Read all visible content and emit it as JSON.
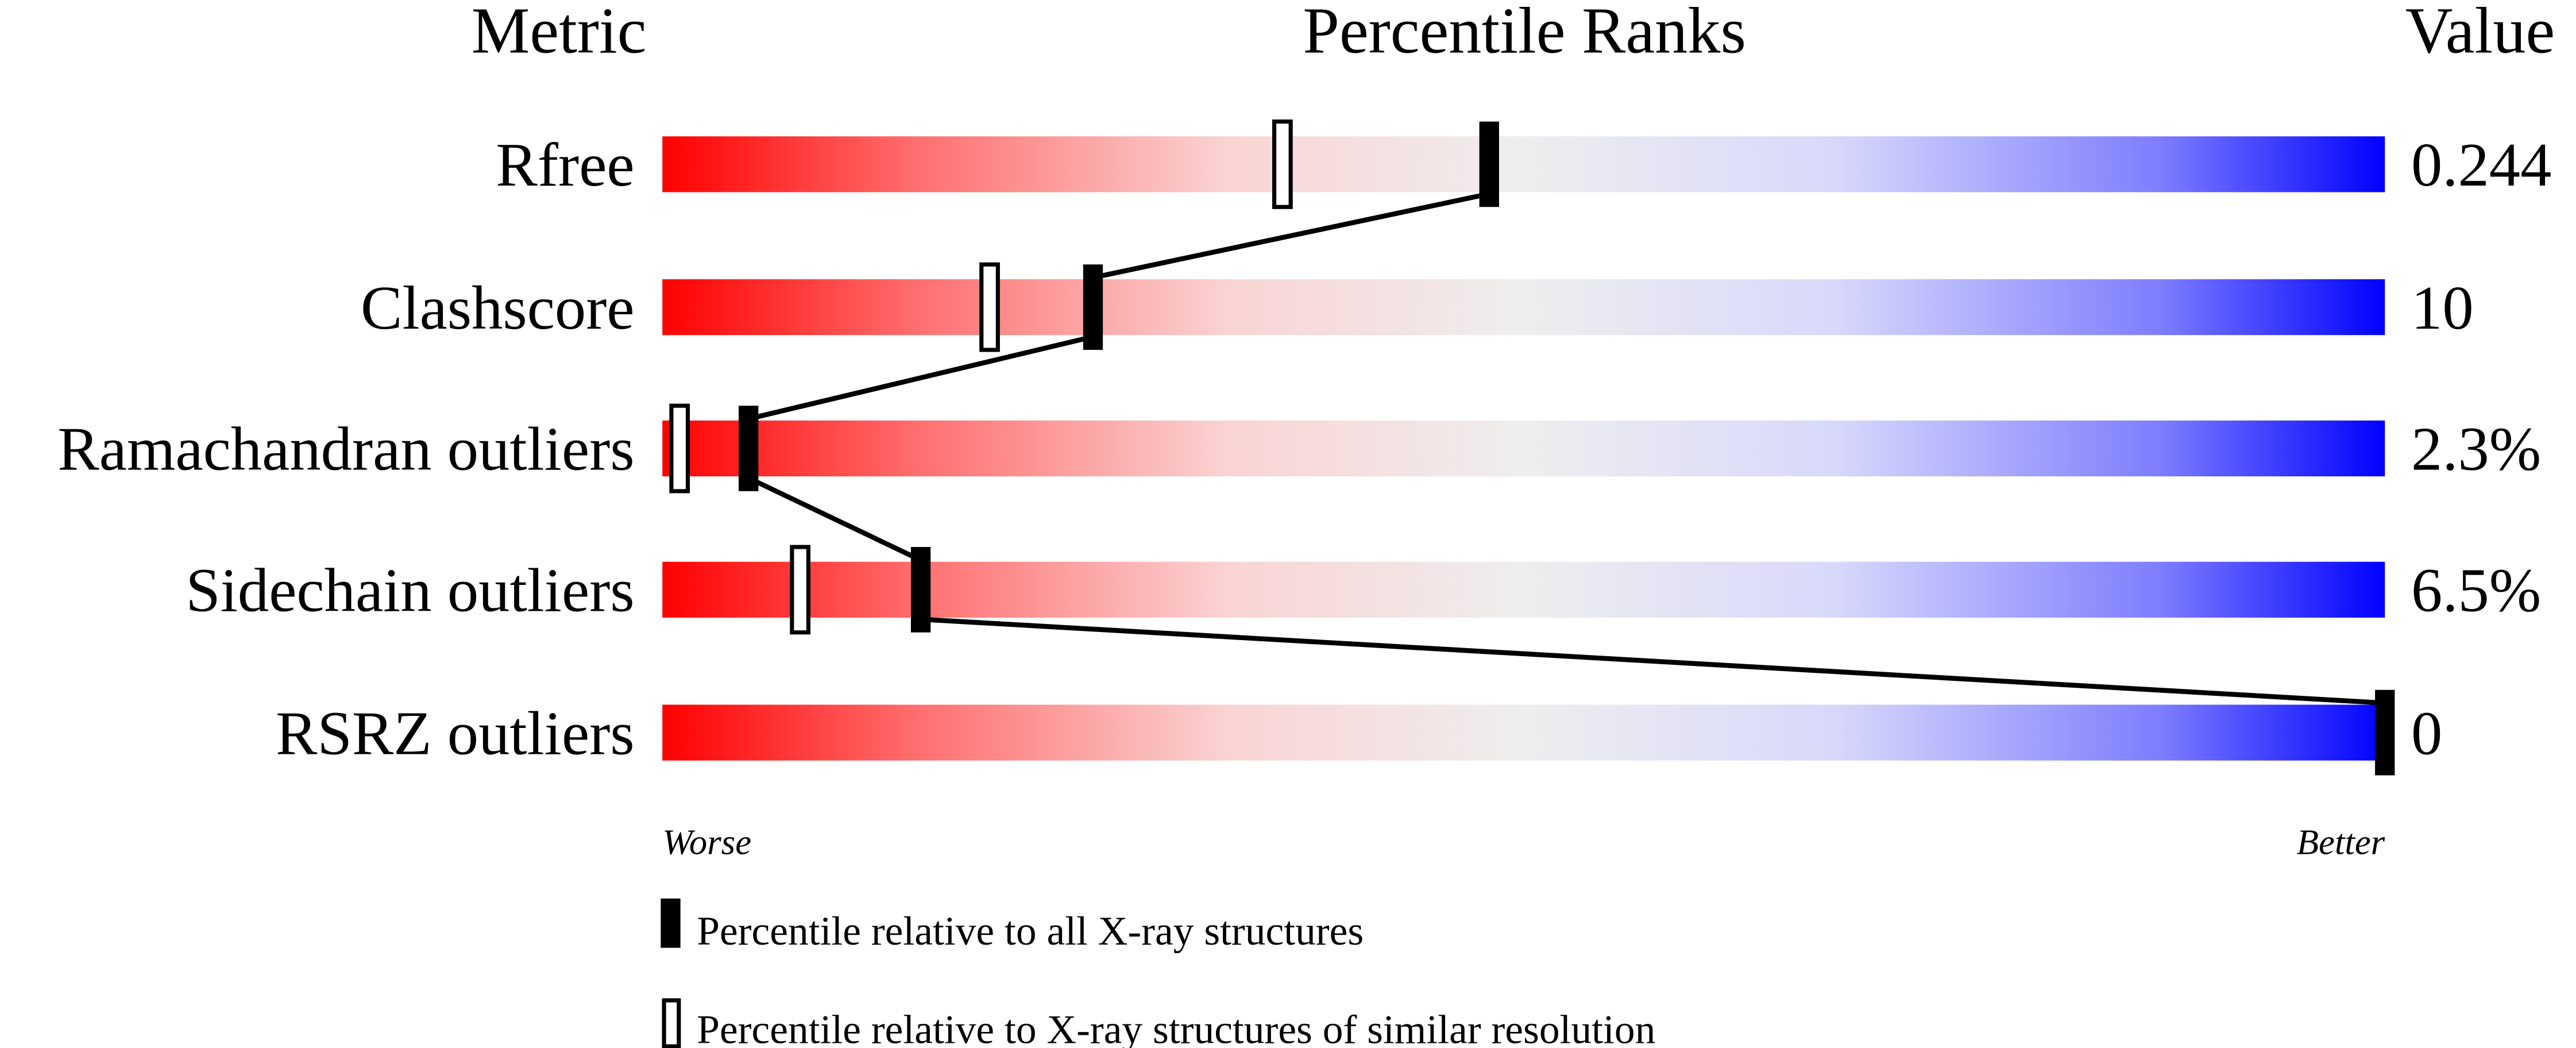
{
  "chart_data": {
    "type": "bar",
    "headers": {
      "metric": "Metric",
      "ranks": "Percentile Ranks",
      "value": "Value"
    },
    "metrics": [
      {
        "name": "Rfree",
        "value": "0.244",
        "percentile_all": 48,
        "percentile_similar": 36
      },
      {
        "name": "Clashscore",
        "value": "10",
        "percentile_all": 25,
        "percentile_similar": 19
      },
      {
        "name": "Ramachandran outliers",
        "value": "2.3%",
        "percentile_all": 5,
        "percentile_similar": 1
      },
      {
        "name": "Sidechain outliers",
        "value": "6.5%",
        "percentile_all": 15,
        "percentile_similar": 8
      },
      {
        "name": "RSRZ outliers",
        "value": "0",
        "percentile_all": 100,
        "percentile_similar": null
      }
    ],
    "xlim": [
      0,
      100
    ],
    "axis_labels": {
      "left": "Worse",
      "right": "Better"
    },
    "legend": {
      "all": "Percentile relative to all X-ray structures",
      "similar": "Percentile relative to X-ray structures of similar resolution"
    },
    "colors": {
      "worse": "#ff0000",
      "middle": "#eeeeee",
      "better": "#0000ff",
      "marker": "#000000"
    }
  }
}
